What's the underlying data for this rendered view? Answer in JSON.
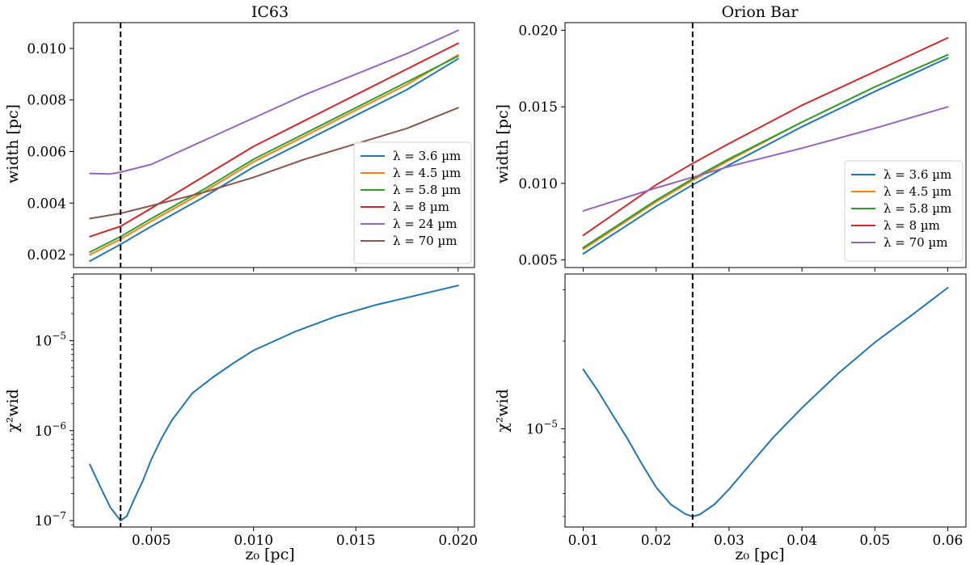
{
  "figure": {
    "x_axis_label": "z₀ [pc]"
  },
  "chart_data": [
    {
      "id": "ic63-width",
      "type": "line",
      "title": "IC63",
      "xlabel": "",
      "ylabel": "width [pc]",
      "xlim": [
        0.0012,
        0.0208
      ],
      "ylim": [
        0.0015,
        0.011
      ],
      "yscale": "linear",
      "xticks": [
        0.005,
        0.01,
        0.015,
        0.02
      ],
      "xtick_labels": [],
      "yticks": [
        0.002,
        0.004,
        0.006,
        0.008,
        0.01
      ],
      "ytick_labels": [
        "0.002",
        "0.004",
        "0.006",
        "0.008",
        "0.010"
      ],
      "vline": 0.0035,
      "legend_position": "center-right",
      "series": [
        {
          "name": "λ = 3.6 µm",
          "color": "#1f77b4",
          "x": [
            0.002,
            0.0035,
            0.005,
            0.0075,
            0.01,
            0.0125,
            0.015,
            0.0175,
            0.02
          ],
          "y": [
            0.00175,
            0.0024,
            0.0031,
            0.0042,
            0.0054,
            0.0064,
            0.0074,
            0.0084,
            0.0096
          ]
        },
        {
          "name": "λ = 4.5 µm",
          "color": "#ff7f0e",
          "x": [
            0.002,
            0.0035,
            0.005,
            0.0075,
            0.01,
            0.0125,
            0.015,
            0.0175,
            0.02
          ],
          "y": [
            0.002,
            0.0026,
            0.0033,
            0.0044,
            0.0056,
            0.0066,
            0.0076,
            0.0086,
            0.00975
          ]
        },
        {
          "name": "λ = 5.8 µm",
          "color": "#2ca02c",
          "x": [
            0.002,
            0.0035,
            0.005,
            0.0075,
            0.01,
            0.0125,
            0.015,
            0.0175,
            0.02
          ],
          "y": [
            0.0021,
            0.0027,
            0.0034,
            0.0045,
            0.0057,
            0.0067,
            0.0077,
            0.0087,
            0.0097
          ]
        },
        {
          "name": "λ = 8 µm",
          "color": "#d62728",
          "x": [
            0.002,
            0.0035,
            0.005,
            0.0075,
            0.01,
            0.0125,
            0.015,
            0.0175,
            0.02
          ],
          "y": [
            0.0027,
            0.0031,
            0.0038,
            0.005,
            0.0062,
            0.0072,
            0.0082,
            0.0092,
            0.0102
          ]
        },
        {
          "name": "λ = 24 µm",
          "color": "#9467bd",
          "x": [
            0.002,
            0.003,
            0.0035,
            0.005,
            0.0075,
            0.01,
            0.0125,
            0.015,
            0.0175,
            0.02
          ],
          "y": [
            0.00515,
            0.00513,
            0.0052,
            0.0055,
            0.0064,
            0.0073,
            0.0082,
            0.009,
            0.0098,
            0.0107
          ]
        },
        {
          "name": "λ = 70 µm",
          "color": "#8c564b",
          "x": [
            0.002,
            0.0035,
            0.005,
            0.0075,
            0.01,
            0.0125,
            0.015,
            0.0175,
            0.02
          ],
          "y": [
            0.0034,
            0.0036,
            0.0039,
            0.0044,
            0.005,
            0.0057,
            0.0063,
            0.0069,
            0.0077
          ]
        }
      ]
    },
    {
      "id": "ic63-chi2",
      "type": "line",
      "title": "",
      "xlabel": "z₀ [pc]",
      "ylabel": "χ²wid",
      "xlim": [
        0.0012,
        0.0208
      ],
      "ylim": [
        8.5e-08,
        5.5e-05
      ],
      "yscale": "log",
      "xticks": [
        0.005,
        0.01,
        0.015,
        0.02
      ],
      "xtick_labels": [
        "0.005",
        "0.010",
        "0.015",
        "0.020"
      ],
      "yticks": [
        1e-07,
        1e-06,
        1e-05
      ],
      "ytick_labels": [
        {
          "base": "10",
          "exp": "−7"
        },
        {
          "base": "10",
          "exp": "−6"
        },
        {
          "base": "10",
          "exp": "−5"
        }
      ],
      "vline": 0.0035,
      "series": [
        {
          "name": "χ²wid",
          "color": "#1f77b4",
          "x": [
            0.002,
            0.0025,
            0.003,
            0.0035,
            0.0038,
            0.0042,
            0.0046,
            0.005,
            0.0055,
            0.006,
            0.007,
            0.008,
            0.009,
            0.01,
            0.012,
            0.014,
            0.016,
            0.018,
            0.02
          ],
          "y": [
            4.2e-07,
            2.4e-07,
            1.4e-07,
            1e-07,
            1.12e-07,
            1.8e-07,
            2.8e-07,
            4.8e-07,
            8.2e-07,
            1.3e-06,
            2.6e-06,
            3.9e-06,
            5.6e-06,
            7.8e-06,
            1.25e-05,
            1.85e-05,
            2.5e-05,
            3.2e-05,
            4.1e-05
          ]
        }
      ]
    },
    {
      "id": "orion-width",
      "type": "line",
      "title": "Orion Bar",
      "xlabel": "",
      "ylabel": "width [pc]",
      "xlim": [
        0.0075,
        0.0625
      ],
      "ylim": [
        0.0045,
        0.0205
      ],
      "yscale": "linear",
      "xticks": [
        0.01,
        0.02,
        0.03,
        0.04,
        0.05,
        0.06
      ],
      "xtick_labels": [],
      "yticks": [
        0.005,
        0.01,
        0.015,
        0.02
      ],
      "ytick_labels": [
        "0.005",
        "0.010",
        "0.015",
        "0.020"
      ],
      "vline": 0.025,
      "legend_position": "center-right",
      "series": [
        {
          "name": "λ = 3.6 µm",
          "color": "#1f77b4",
          "x": [
            0.01,
            0.02,
            0.025,
            0.03,
            0.04,
            0.05,
            0.06
          ],
          "y": [
            0.0054,
            0.0085,
            0.0099,
            0.0112,
            0.0137,
            0.016,
            0.0182
          ]
        },
        {
          "name": "λ = 4.5 µm",
          "color": "#ff7f0e",
          "x": [
            0.01,
            0.02,
            0.025,
            0.03,
            0.04,
            0.05,
            0.06
          ],
          "y": [
            0.0057,
            0.0088,
            0.0102,
            0.0115,
            0.014,
            0.0163,
            0.0184
          ]
        },
        {
          "name": "λ = 5.8 µm",
          "color": "#2ca02c",
          "x": [
            0.01,
            0.02,
            0.025,
            0.03,
            0.04,
            0.05,
            0.06
          ],
          "y": [
            0.0058,
            0.0089,
            0.0103,
            0.0116,
            0.014,
            0.0163,
            0.0184
          ]
        },
        {
          "name": "λ = 8 µm",
          "color": "#d62728",
          "x": [
            0.01,
            0.02,
            0.025,
            0.03,
            0.04,
            0.05,
            0.06
          ],
          "y": [
            0.0066,
            0.0099,
            0.0113,
            0.0126,
            0.0151,
            0.0173,
            0.0195
          ]
        },
        {
          "name": "λ = 70 µm",
          "color": "#9467bd",
          "x": [
            0.01,
            0.02,
            0.025,
            0.03,
            0.04,
            0.05,
            0.06
          ],
          "y": [
            0.0082,
            0.0097,
            0.0104,
            0.0111,
            0.0123,
            0.0136,
            0.015
          ]
        }
      ]
    },
    {
      "id": "orion-chi2",
      "type": "line",
      "title": "",
      "xlabel": "z₀ [pc]",
      "ylabel": "χ²wid",
      "xlim": [
        0.0075,
        0.0625
      ],
      "ylim": [
        4.6e-06,
        3.4e-05
      ],
      "yscale": "log",
      "xticks": [
        0.01,
        0.02,
        0.03,
        0.04,
        0.05,
        0.06
      ],
      "xtick_labels": [
        "0.01",
        "0.02",
        "0.03",
        "0.04",
        "0.05",
        "0.06"
      ],
      "yticks": [
        1e-05
      ],
      "ytick_labels": [
        {
          "base": "10",
          "exp": "−5"
        }
      ],
      "vline": 0.025,
      "series": [
        {
          "name": "χ²wid",
          "color": "#1f77b4",
          "x": [
            0.01,
            0.012,
            0.014,
            0.016,
            0.018,
            0.02,
            0.022,
            0.024,
            0.025,
            0.026,
            0.028,
            0.03,
            0.033,
            0.036,
            0.04,
            0.045,
            0.05,
            0.055,
            0.06
          ],
          "y": [
            1.6e-05,
            1.35e-05,
            1.12e-05,
            9.3e-06,
            7.6e-06,
            6.3e-06,
            5.5e-06,
            5.1e-06,
            5e-06,
            5.08e-06,
            5.5e-06,
            6.2e-06,
            7.6e-06,
            9.3e-06,
            1.18e-05,
            1.55e-05,
            1.98e-05,
            2.45e-05,
            3.05e-05
          ]
        }
      ]
    }
  ]
}
